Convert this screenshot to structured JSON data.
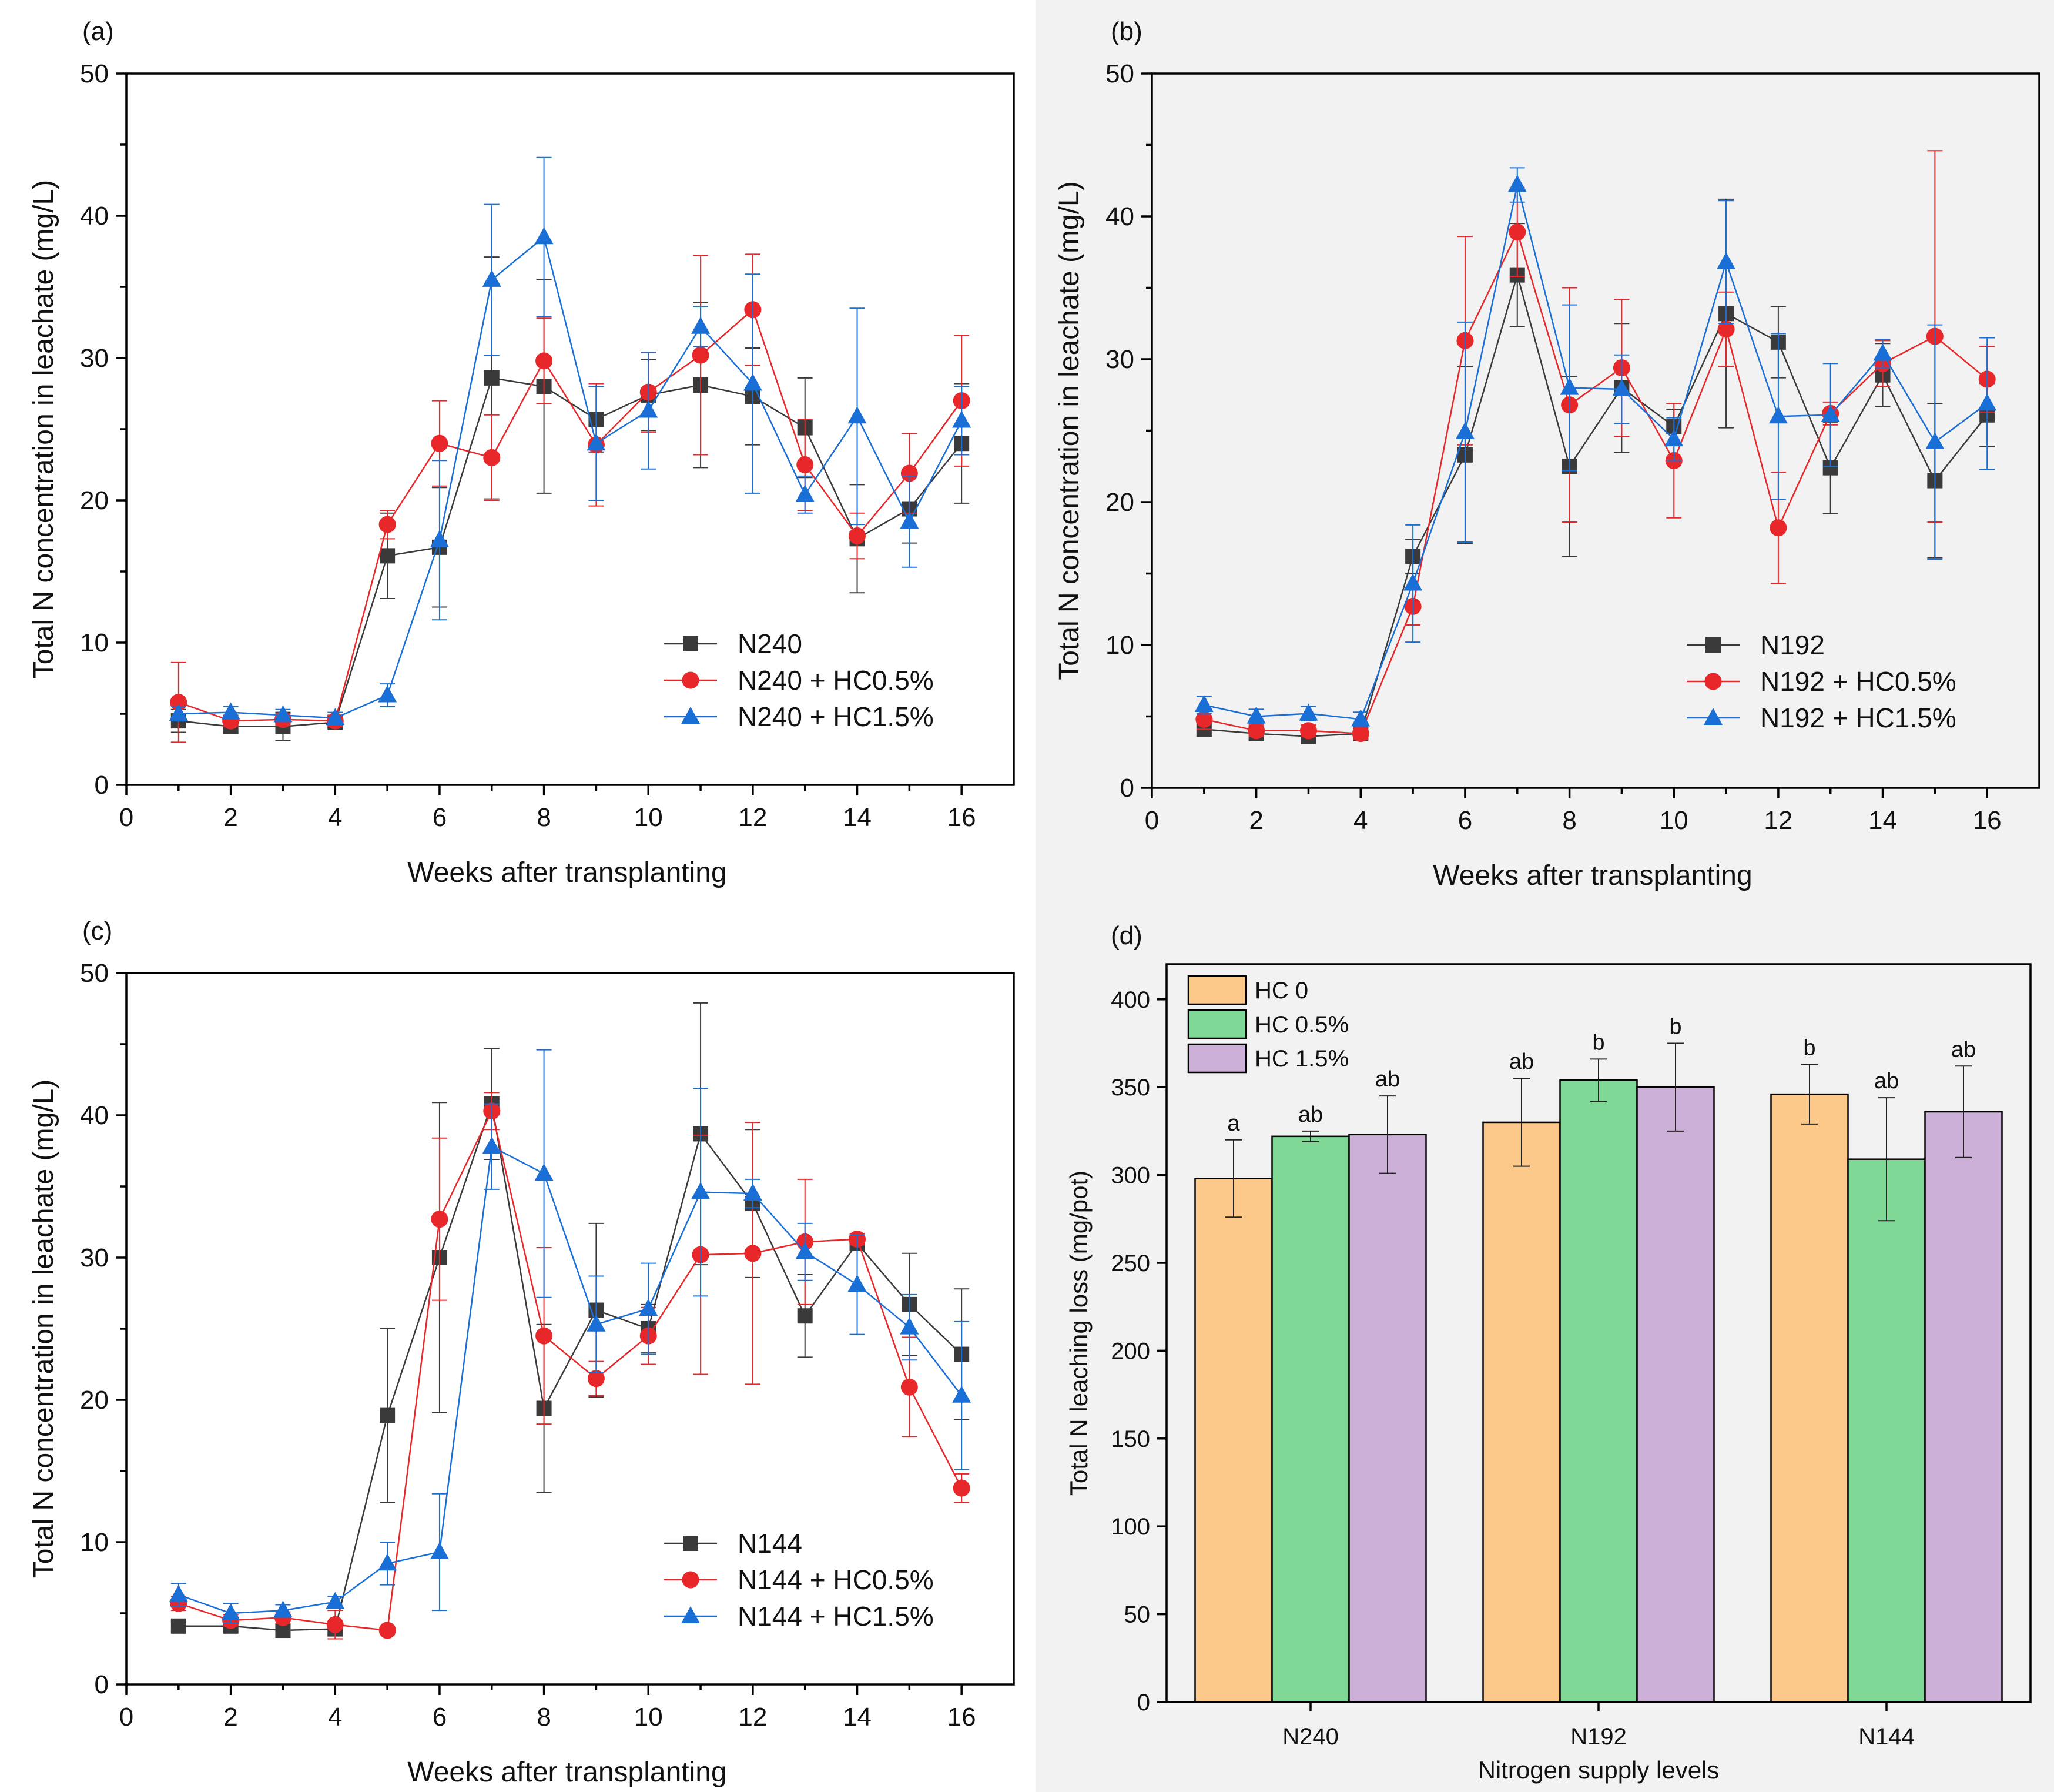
{
  "chart_data": [
    {
      "panel": "(a)",
      "type": "line",
      "xlabel": "Weeks after transplanting",
      "ylabel": "Total N concentration in leachate (mg/L)",
      "xlim": [
        0,
        17
      ],
      "ylim": [
        0,
        50
      ],
      "xticks": [
        0,
        2,
        4,
        6,
        8,
        10,
        12,
        14,
        16
      ],
      "yticks": [
        0,
        10,
        20,
        30,
        40,
        50
      ],
      "legend_position": "bottom-right",
      "x": [
        1,
        2,
        3,
        4,
        5,
        6,
        7,
        8,
        9,
        10,
        11,
        12,
        13,
        14,
        15,
        16
      ],
      "series": [
        {
          "name": "N240",
          "color": "#3a3a3a",
          "marker": "square",
          "values": [
            4.5,
            4.1,
            4.1,
            4.4,
            16.1,
            16.7,
            28.6,
            28.0,
            25.7,
            27.4,
            28.1,
            27.3,
            25.1,
            17.3,
            19.4,
            24.0
          ],
          "errors": [
            0.8,
            0.4,
            1.0,
            0.4,
            3.0,
            4.2,
            8.5,
            7.5,
            2.3,
            2.5,
            5.8,
            3.4,
            3.5,
            3.8,
            2.4,
            4.2
          ]
        },
        {
          "name": "N240 + HC0.5%",
          "color": "#e8272a",
          "marker": "circle",
          "values": [
            5.8,
            4.5,
            4.6,
            4.5,
            18.3,
            24.0,
            23.0,
            29.8,
            23.9,
            27.6,
            30.2,
            33.4,
            22.5,
            17.5,
            21.9,
            27.0
          ],
          "errors": [
            2.8,
            0.4,
            0.4,
            0.4,
            1.0,
            3.0,
            3.0,
            3.0,
            4.3,
            2.8,
            7.0,
            3.9,
            3.2,
            1.6,
            2.8,
            4.6
          ]
        },
        {
          "name": "N240 + HC1.5%",
          "color": "#1a6fd6",
          "marker": "triangle",
          "values": [
            5.0,
            5.1,
            4.9,
            4.7,
            6.3,
            17.2,
            35.5,
            38.5,
            24.0,
            26.3,
            32.2,
            28.2,
            20.4,
            25.9,
            18.5,
            25.6
          ],
          "errors": [
            0.5,
            0.4,
            0.4,
            0.4,
            0.8,
            5.6,
            5.3,
            5.6,
            4.0,
            4.1,
            1.4,
            7.7,
            1.3,
            7.6,
            3.2,
            2.4
          ]
        }
      ]
    },
    {
      "panel": "(b)",
      "type": "line",
      "xlabel": "Weeks after transplanting",
      "ylabel": "Total N concentration in leachate (mg/L)",
      "xlim": [
        0,
        17
      ],
      "ylim": [
        0,
        50
      ],
      "xticks": [
        0,
        2,
        4,
        6,
        8,
        10,
        12,
        14,
        16
      ],
      "yticks": [
        0,
        10,
        20,
        30,
        40,
        50
      ],
      "legend_position": "bottom-right",
      "x": [
        1,
        2,
        3,
        4,
        5,
        6,
        7,
        8,
        9,
        10,
        11,
        12,
        13,
        14,
        15,
        16
      ],
      "series": [
        {
          "name": "N192",
          "color": "#3a3a3a",
          "marker": "square",
          "values": [
            4.1,
            3.8,
            3.6,
            3.8,
            16.2,
            23.3,
            35.9,
            22.5,
            28.0,
            25.3,
            33.2,
            31.2,
            22.4,
            28.9,
            21.5,
            26.1
          ],
          "errors": [
            0.5,
            0.4,
            0.5,
            0.4,
            1.2,
            6.2,
            3.6,
            6.3,
            4.5,
            1.2,
            8.0,
            2.5,
            3.2,
            2.2,
            5.4,
            2.2
          ]
        },
        {
          "name": "N192 + HC0.5%",
          "color": "#e8272a",
          "marker": "circle",
          "values": [
            4.8,
            4.0,
            4.0,
            3.8,
            12.7,
            31.3,
            38.9,
            26.8,
            29.4,
            22.9,
            32.1,
            18.2,
            26.2,
            29.7,
            31.6,
            28.6
          ],
          "errors": [
            0.7,
            0.4,
            0.4,
            0.4,
            1.3,
            7.3,
            3.1,
            8.2,
            4.8,
            4.0,
            2.6,
            3.9,
            0.8,
            1.6,
            13.0,
            2.3
          ]
        },
        {
          "name": "N192 + HC1.5%",
          "color": "#1a6fd6",
          "marker": "triangle",
          "values": [
            5.8,
            5.0,
            5.2,
            4.8,
            14.3,
            24.9,
            42.2,
            28.0,
            27.9,
            24.4,
            36.8,
            26.0,
            26.1,
            30.4,
            24.2,
            26.9
          ],
          "errors": [
            0.6,
            0.5,
            0.5,
            0.5,
            4.1,
            7.7,
            1.2,
            5.8,
            2.4,
            1.5,
            4.3,
            5.8,
            3.6,
            1.0,
            8.2,
            4.6
          ]
        }
      ]
    },
    {
      "panel": "(c)",
      "type": "line",
      "xlabel": "Weeks after transplanting",
      "ylabel": "Total N concentration in leachate (mg/L)",
      "xlim": [
        0,
        17
      ],
      "ylim": [
        0,
        50
      ],
      "xticks": [
        0,
        2,
        4,
        6,
        8,
        10,
        12,
        14,
        16
      ],
      "yticks": [
        0,
        10,
        20,
        30,
        40,
        50
      ],
      "legend_position": "bottom-right",
      "x": [
        1,
        2,
        3,
        4,
        5,
        6,
        7,
        8,
        9,
        10,
        11,
        12,
        13,
        14,
        15,
        16
      ],
      "series": [
        {
          "name": "N144",
          "color": "#3a3a3a",
          "marker": "square",
          "values": [
            4.1,
            4.1,
            3.8,
            3.9,
            18.9,
            30.0,
            40.8,
            19.4,
            26.3,
            25.0,
            38.7,
            33.8,
            25.9,
            31.0,
            26.7,
            23.2
          ],
          "errors": [
            0.4,
            0.4,
            0.4,
            0.4,
            6.1,
            10.9,
            3.9,
            5.9,
            6.1,
            1.7,
            9.2,
            5.2,
            2.9,
            0.5,
            3.6,
            4.6
          ]
        },
        {
          "name": "N144 + HC0.5%",
          "color": "#e8272a",
          "marker": "circle",
          "values": [
            5.7,
            4.5,
            4.7,
            4.2,
            3.8,
            32.7,
            40.3,
            24.5,
            21.5,
            24.5,
            30.2,
            30.3,
            31.1,
            31.3,
            20.9,
            13.8
          ],
          "errors": [
            0.5,
            0.4,
            0.4,
            1.0,
            0.3,
            5.7,
            1.3,
            6.2,
            1.2,
            2.0,
            8.4,
            9.2,
            4.4,
            0.4,
            3.5,
            1.0
          ]
        },
        {
          "name": "N144 + HC1.5%",
          "color": "#1a6fd6",
          "marker": "triangle",
          "values": [
            6.3,
            5.0,
            5.2,
            5.8,
            8.5,
            9.3,
            37.8,
            35.9,
            25.3,
            26.4,
            34.6,
            34.5,
            30.4,
            28.1,
            25.1,
            20.3
          ],
          "errors": [
            0.8,
            0.7,
            0.4,
            0.4,
            1.5,
            4.1,
            3.0,
            8.7,
            3.4,
            3.2,
            7.3,
            1.0,
            2.0,
            3.5,
            2.3,
            5.2
          ]
        }
      ]
    },
    {
      "panel": "(d)",
      "type": "bar",
      "xlabel": "Nitrogen supply levels",
      "ylabel": "Total N leaching loss (mg/pot)",
      "ylim": [
        0,
        420
      ],
      "yticks": [
        0,
        50,
        100,
        150,
        200,
        250,
        300,
        350,
        400
      ],
      "legend_position": "top-left",
      "categories": [
        "N240",
        "N192",
        "N144"
      ],
      "series": [
        {
          "name": "HC 0",
          "color": "#fdc98a",
          "values": [
            298,
            330,
            346
          ],
          "errors": [
            22,
            25,
            17
          ],
          "labels": [
            "a",
            "ab",
            "b"
          ]
        },
        {
          "name": "HC 0.5%",
          "color": "#7fd896",
          "values": [
            322,
            354,
            309
          ],
          "errors": [
            3,
            12,
            35
          ],
          "labels": [
            "ab",
            "b",
            "ab"
          ]
        },
        {
          "name": "HC 1.5%",
          "color": "#cdb0d8",
          "values": [
            323,
            350,
            336
          ],
          "errors": [
            22,
            25,
            26
          ],
          "labels": [
            "ab",
            "b",
            "ab"
          ]
        }
      ]
    }
  ]
}
